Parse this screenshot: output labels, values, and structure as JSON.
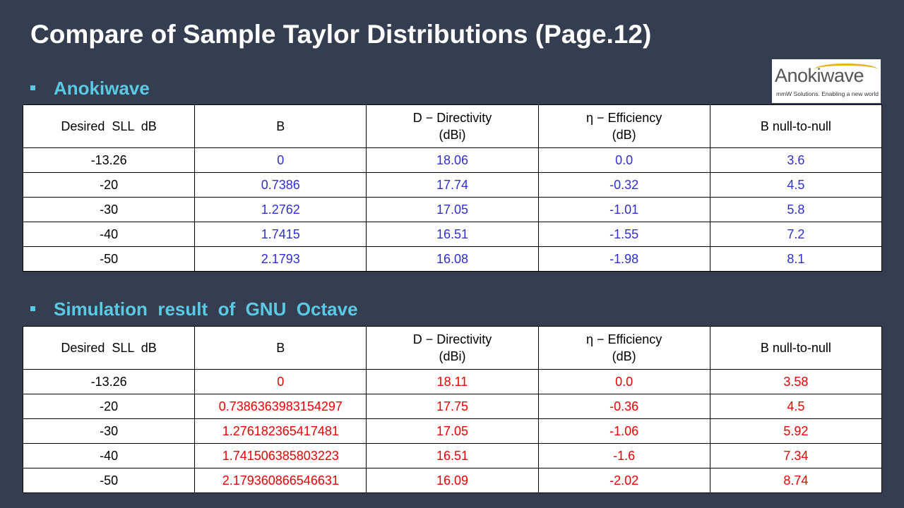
{
  "title": "Compare of Sample Taylor Distributions (Page.12)",
  "logo": {
    "name": "Anokiwave",
    "tagline": "mmW Solutions. Enabling a new world"
  },
  "sections": [
    {
      "heading": "Anokiwave",
      "value_color": "#2f2fd6",
      "table": {
        "header": [
          [
            "Desired  SLL  dB"
          ],
          [
            "B"
          ],
          [
            "D − Directivity",
            "(dBi)"
          ],
          [
            "η − Efficiency",
            "(dB)"
          ],
          [
            "B null-to-null"
          ]
        ],
        "rows": [
          [
            "-13.26",
            "0",
            "18.06",
            "0.0",
            "3.6"
          ],
          [
            "-20",
            "0.7386",
            "17.74",
            "-0.32",
            "4.5"
          ],
          [
            "-30",
            "1.2762",
            "17.05",
            "-1.01",
            "5.8"
          ],
          [
            "-40",
            "1.7415",
            "16.51",
            "-1.55",
            "7.2"
          ],
          [
            "-50",
            "2.1793",
            "16.08",
            "-1.98",
            "8.1"
          ]
        ]
      }
    },
    {
      "heading": "Simulation  result  of  GNU  Octave",
      "value_color": "#ee0000",
      "table": {
        "header": [
          [
            "Desired  SLL  dB"
          ],
          [
            "B"
          ],
          [
            "D − Directivity",
            "(dBi)"
          ],
          [
            "η − Efficiency",
            "(dB)"
          ],
          [
            "B null-to-null"
          ]
        ],
        "rows": [
          [
            "-13.26",
            "0",
            "18.11",
            "0.0",
            "3.58"
          ],
          [
            "-20",
            "0.7386363983154297",
            "17.75",
            "-0.36",
            "4.5"
          ],
          [
            "-30",
            "1.276182365417481",
            "17.05",
            "-1.06",
            "5.92"
          ],
          [
            "-40",
            "1.741506385803223",
            "16.51",
            "-1.6",
            "7.34"
          ],
          [
            "-50",
            "2.179360866546631",
            "16.09",
            "-2.02",
            "8.74"
          ]
        ]
      }
    }
  ]
}
